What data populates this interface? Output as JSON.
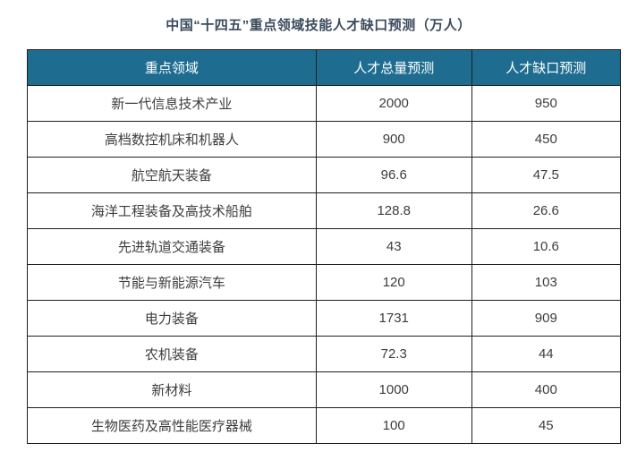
{
  "title": "中国“十四五”重点领域技能人才缺口预测（万人）",
  "table": {
    "headers": [
      "重点领域",
      "人才总量预测",
      "人才缺口预测"
    ],
    "rows": [
      [
        "新一代信息技术产业",
        "2000",
        "950"
      ],
      [
        "高档数控机床和机器人",
        "900",
        "450"
      ],
      [
        "航空航天装备",
        "96.6",
        "47.5"
      ],
      [
        "海洋工程装备及高技术船舶",
        "128.8",
        "26.6"
      ],
      [
        "先进轨道交通装备",
        "43",
        "10.6"
      ],
      [
        "节能与新能源汽车",
        "120",
        "103"
      ],
      [
        "电力装备",
        "1731",
        "909"
      ],
      [
        "农机装备",
        "72.3",
        "44"
      ],
      [
        "新材料",
        "1000",
        "400"
      ],
      [
        "生物医药及高性能医疗器械",
        "100",
        "45"
      ]
    ]
  },
  "colors": {
    "header_background": "#1e6d90",
    "header_text": "#ffffff",
    "title_text": "#3b4a5c",
    "cell_text": "#3d3d3d",
    "border": "#1f1f1f",
    "page_background": "#ffffff"
  },
  "chart_data": {
    "type": "table",
    "title": "中国“十四五”重点领域技能人才缺口预测（万人）",
    "unit": "万人",
    "columns": [
      "重点领域",
      "人才总量预测",
      "人才缺口预测"
    ],
    "categories": [
      "新一代信息技术产业",
      "高档数控机床和机器人",
      "航空航天装备",
      "海洋工程装备及高技术船舶",
      "先进轨道交通装备",
      "节能与新能源汽车",
      "电力装备",
      "农机装备",
      "新材料",
      "生物医药及高性能医疗器械"
    ],
    "series": [
      {
        "name": "人才总量预测",
        "values": [
          2000,
          900,
          96.6,
          128.8,
          43,
          120,
          1731,
          72.3,
          1000,
          100
        ]
      },
      {
        "name": "人才缺口预测",
        "values": [
          950,
          450,
          47.5,
          26.6,
          10.6,
          103,
          909,
          44,
          400,
          45
        ]
      }
    ]
  }
}
